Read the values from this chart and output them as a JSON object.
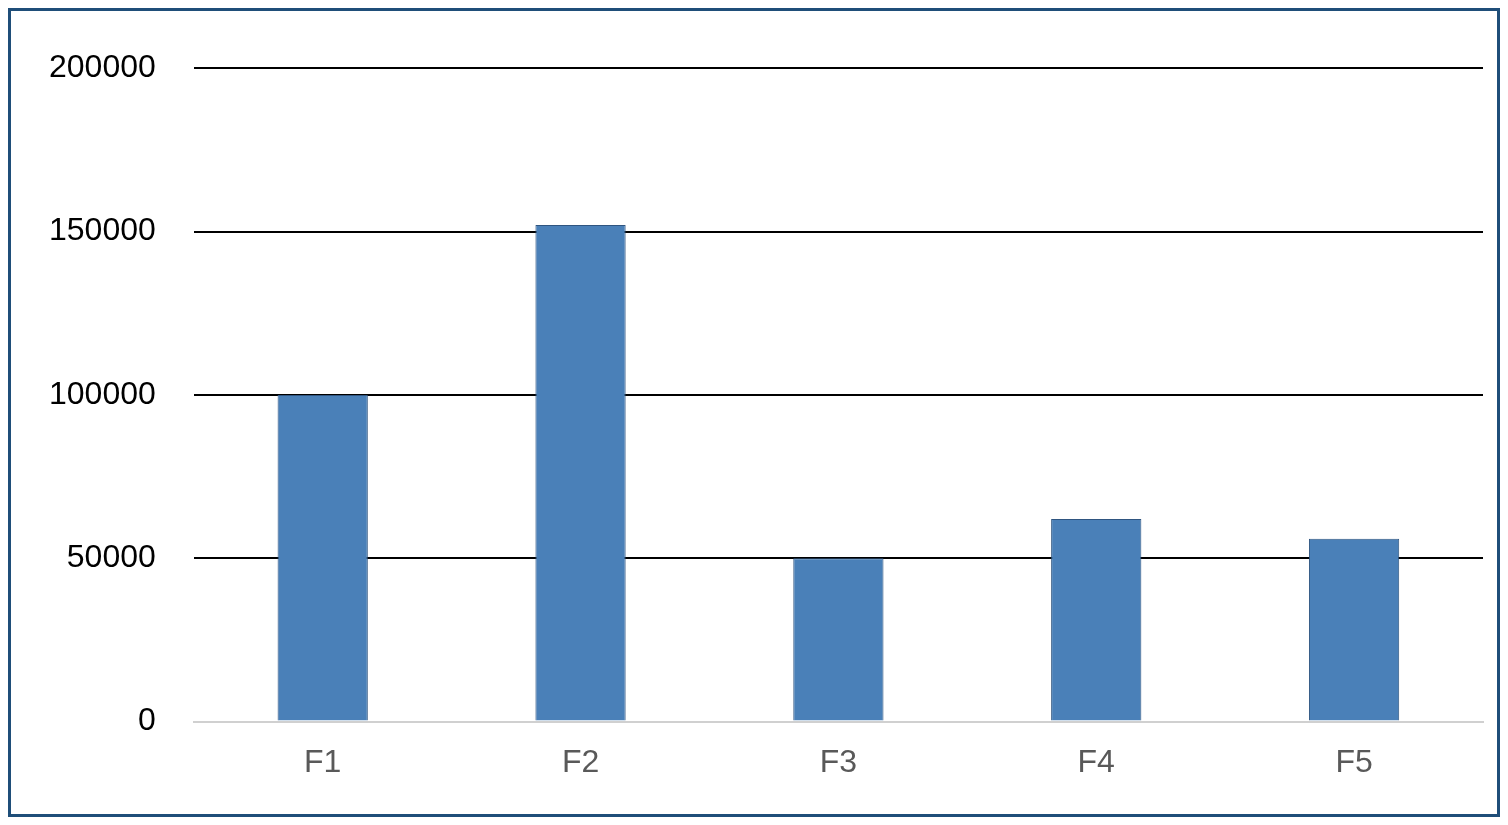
{
  "chart_data": {
    "type": "bar",
    "categories": [
      "F1",
      "F2",
      "F3",
      "F4",
      "F5"
    ],
    "values": [
      100000,
      152000,
      50000,
      62000,
      56000
    ],
    "color": "#4a80b8",
    "ylim": [
      0,
      200000
    ],
    "yticks": [
      0,
      50000,
      100000,
      150000,
      200000
    ],
    "grid": "y",
    "legend": false
  }
}
